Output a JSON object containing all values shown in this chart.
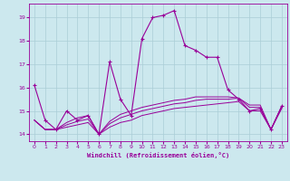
{
  "title": "",
  "xlabel": "Windchill (Refroidissement éolien,°C)",
  "ylabel": "",
  "background_color": "#cce8ee",
  "grid_color": "#aacdd6",
  "line_color": "#990099",
  "xlim": [
    -0.5,
    23.5
  ],
  "ylim": [
    13.7,
    19.6
  ],
  "xticks": [
    0,
    1,
    2,
    3,
    4,
    5,
    6,
    7,
    8,
    9,
    10,
    11,
    12,
    13,
    14,
    15,
    16,
    17,
    18,
    19,
    20,
    21,
    22,
    23
  ],
  "yticks": [
    14,
    15,
    16,
    17,
    18,
    19
  ],
  "main_line_x": [
    0,
    1,
    2,
    3,
    4,
    5,
    6,
    7,
    8,
    9,
    10,
    11,
    12,
    13,
    14,
    15,
    16,
    17,
    18,
    19,
    20,
    21,
    22,
    23
  ],
  "main_line_y": [
    16.1,
    14.6,
    14.2,
    15.0,
    14.6,
    14.8,
    14.0,
    17.1,
    15.5,
    14.8,
    18.1,
    19.0,
    19.1,
    19.3,
    17.8,
    17.6,
    17.3,
    17.3,
    15.9,
    15.5,
    15.0,
    15.1,
    14.2,
    15.2
  ],
  "line2_y": [
    14.6,
    14.2,
    14.2,
    14.3,
    14.4,
    14.5,
    14.0,
    14.3,
    14.5,
    14.6,
    14.8,
    14.9,
    15.0,
    15.1,
    15.15,
    15.2,
    15.25,
    15.3,
    15.35,
    15.4,
    15.0,
    15.0,
    14.2,
    15.1
  ],
  "line3_y": [
    14.6,
    14.2,
    14.2,
    14.4,
    14.55,
    14.65,
    14.0,
    14.45,
    14.7,
    14.85,
    15.0,
    15.1,
    15.2,
    15.3,
    15.35,
    15.45,
    15.5,
    15.5,
    15.5,
    15.55,
    15.15,
    15.15,
    14.2,
    15.2
  ],
  "line4_y": [
    14.6,
    14.2,
    14.2,
    14.5,
    14.7,
    14.8,
    14.0,
    14.55,
    14.85,
    15.0,
    15.15,
    15.25,
    15.35,
    15.45,
    15.5,
    15.6,
    15.6,
    15.6,
    15.6,
    15.55,
    15.25,
    15.25,
    14.2,
    15.2
  ]
}
